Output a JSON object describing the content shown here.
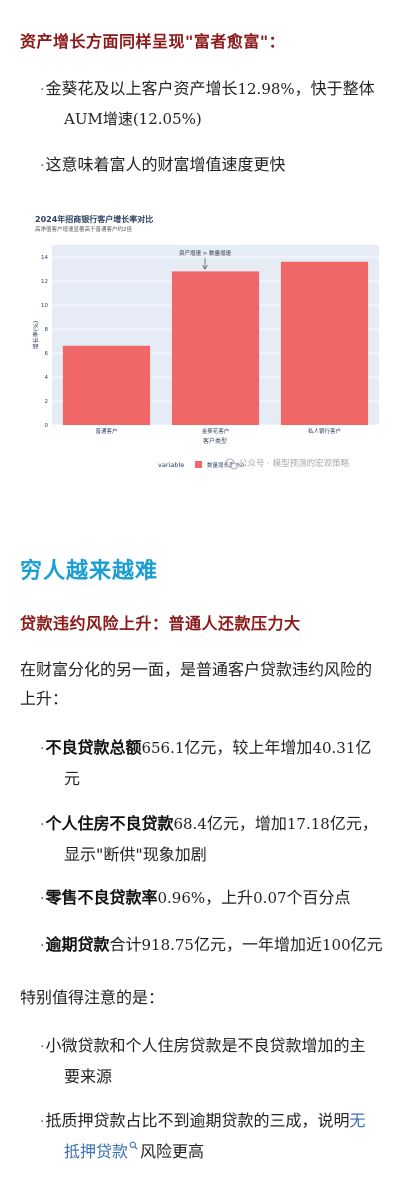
{
  "section1": {
    "heading": "资产增长方面同样呈现\"富者愈富\"：",
    "bullets": [
      {
        "dot": "·",
        "line1_a": "金葵花及以上客户资产增长",
        "line1_num": "12.98%",
        "line1_b": "，快于整体",
        "line2": "AUM增速(12.05%)"
      },
      {
        "dot": "·",
        "text": "这意味着富人的财富增值速度更快"
      }
    ]
  },
  "chart_data": {
    "type": "bar",
    "title": "2024年招商银行客户增长率对比",
    "subtitle": "高净值客户增速显著高于普通客户约2倍",
    "categories": [
      "普通客户",
      "金葵花客户",
      "私人银行客户"
    ],
    "values": [
      6.6,
      12.8,
      13.6
    ],
    "yticks": [
      0,
      2,
      4,
      6,
      8,
      10,
      12,
      14
    ],
    "ylim": [
      0,
      15
    ],
    "xlabel": "客户类型",
    "ylabel": "增长率(%)",
    "annotation": "资产增速 > 数量增速",
    "legend_title": "variable",
    "legend_label": "数量增长率(%)",
    "bar_color": "#ef6767",
    "plot_bg": "#e5ecf6"
  },
  "watermark": "公众号 · 模型预测的宏观策略",
  "section2": {
    "title": "穷人越来越难"
  },
  "section3": {
    "heading": "贷款违约风险上升：普通人还款压力大",
    "intro_line1": "在财富分化的另一面，是普通客户贷款违约风险的",
    "intro_line2": "上升：",
    "bullets": [
      {
        "dot": "·",
        "bold": "不良贷款总额",
        "num": "656.1",
        "rest": "亿元，较上年增加",
        "num2": "40.31",
        "tail": "亿",
        "line2": "元"
      },
      {
        "dot": "·",
        "bold": "个人住房不良贷款",
        "num": "68.4",
        "rest": "亿元，增加",
        "num2": "17.18",
        "tail": "亿元，",
        "line2": "显示\"断供\"现象加剧"
      },
      {
        "dot": "·",
        "bold": "零售不良贷款率",
        "num": "0.96%",
        "rest": "，上升",
        "num2": "0.07",
        "tail": "个百分点"
      },
      {
        "dot": "·",
        "bold": "逾期贷款",
        "pre": "合计",
        "num": "918.75",
        "rest": "亿元，一年增加近",
        "num2": "100",
        "tail": "亿元"
      }
    ],
    "note": "特别值得注意的是：",
    "bullets2": [
      {
        "dot": "·",
        "line1": "小微贷款和个人住房贷款是不良贷款增加的主",
        "line2": "要来源"
      },
      {
        "dot": "·",
        "line1_a": "抵质押贷款占比不到逾期贷款的三成，说明",
        "line1_link": "无",
        "line2_link": "抵押贷款",
        "line2_b": "风险更高"
      }
    ]
  }
}
